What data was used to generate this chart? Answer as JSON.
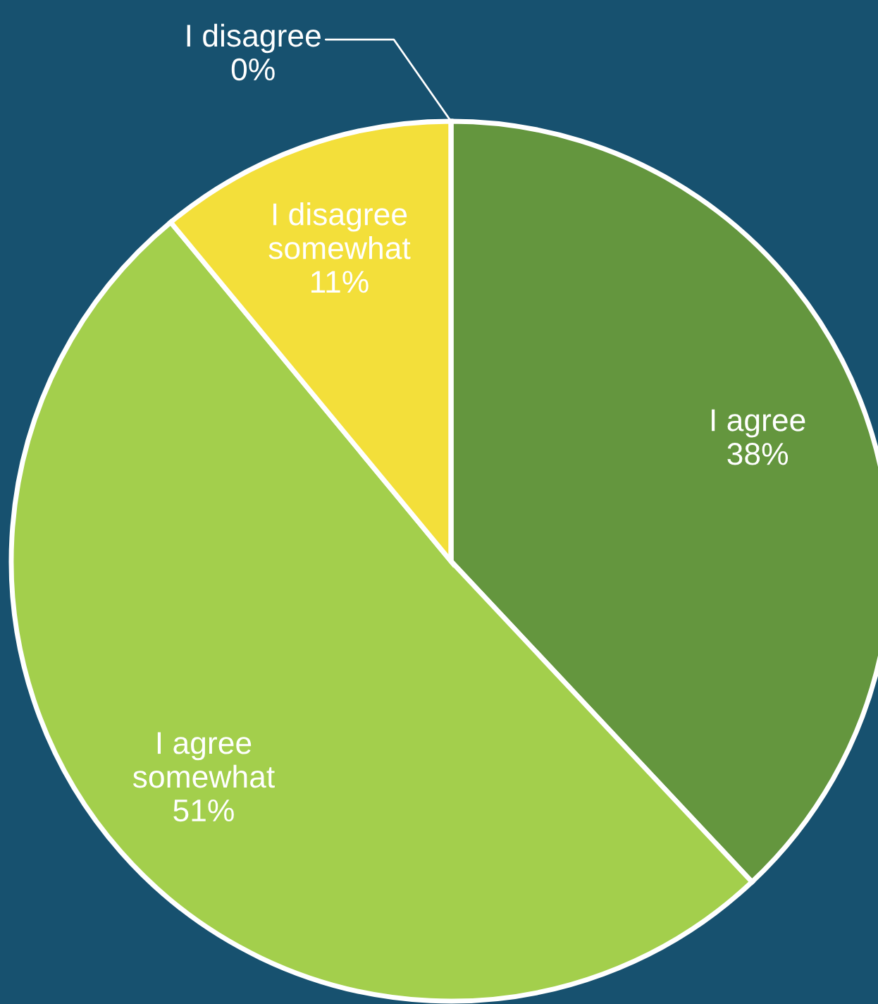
{
  "chart_data": {
    "type": "pie",
    "categories": [
      "I agree",
      "I agree somewhat",
      "I disagree somewhat",
      "I disagree"
    ],
    "values": [
      38,
      51,
      11,
      0
    ],
    "colors": [
      "#64963e",
      "#a3cf4c",
      "#f3df3a",
      "#c0504d"
    ],
    "value_labels": [
      "38%",
      "51%",
      "11%",
      "0%"
    ],
    "legend": false
  }
}
